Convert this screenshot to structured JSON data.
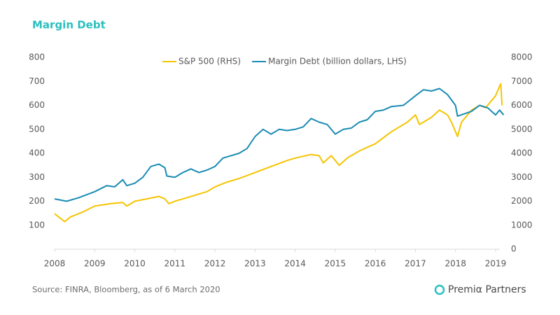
{
  "chart_data": {
    "type": "line",
    "title": "Margin Debt",
    "source": "Source: FINRA, Bloomberg, as of 6 March 2020",
    "brand": "Premiα Partners",
    "xlim": [
      2008,
      2019.25
    ],
    "xticks": [
      2008,
      2009,
      2010,
      2011,
      2012,
      2013,
      2014,
      2015,
      2016,
      2017,
      2018,
      2019
    ],
    "ylim": [
      0,
      800
    ],
    "yticks": [
      100,
      200,
      300,
      400,
      500,
      600,
      700,
      800
    ],
    "y2lim": [
      0,
      8000
    ],
    "y2ticks": [
      0,
      1000,
      2000,
      3000,
      4000,
      5000,
      6000,
      7000,
      8000
    ],
    "legend": "top",
    "series": [
      {
        "name": "S&P 500 (RHS)",
        "color": "#f5c400",
        "axis": "y2",
        "x": [
          2008.0,
          2008.1,
          2008.25,
          2008.4,
          2008.7,
          2009.0,
          2009.4,
          2009.7,
          2009.8,
          2010.0,
          2010.3,
          2010.6,
          2010.75,
          2010.85,
          2011.0,
          2011.3,
          2011.6,
          2011.8,
          2012.0,
          2012.3,
          2012.6,
          2013.0,
          2013.4,
          2013.8,
          2014.0,
          2014.4,
          2014.6,
          2014.7,
          2014.9,
          2015.1,
          2015.3,
          2015.6,
          2016.0,
          2016.4,
          2016.8,
          2017.0,
          2017.1,
          2017.4,
          2017.6,
          2017.8,
          2017.9,
          2018.05,
          2018.15,
          2018.4,
          2018.6,
          2018.75,
          2019.0,
          2019.1,
          2019.13,
          2019.16
        ],
        "values": [
          1480,
          1350,
          1150,
          1350,
          1550,
          1800,
          1900,
          1950,
          1800,
          2000,
          2100,
          2200,
          2100,
          1900,
          2000,
          2150,
          2300,
          2400,
          2600,
          2800,
          2950,
          3200,
          3450,
          3700,
          3800,
          3950,
          3900,
          3600,
          3900,
          3500,
          3800,
          4100,
          4400,
          4900,
          5300,
          5600,
          5200,
          5500,
          5800,
          5600,
          5300,
          4700,
          5300,
          5800,
          6000,
          5900,
          6400,
          6800,
          6900,
          6000
        ]
      },
      {
        "name": "Margin Debt (billion dollars, LHS)",
        "color": "#1a8cb3",
        "axis": "y",
        "x": [
          2008.0,
          2008.3,
          2008.6,
          2009.0,
          2009.3,
          2009.5,
          2009.7,
          2009.8,
          2010.0,
          2010.2,
          2010.4,
          2010.6,
          2010.75,
          2010.8,
          2011.0,
          2011.2,
          2011.4,
          2011.6,
          2011.8,
          2012.0,
          2012.2,
          2012.4,
          2012.6,
          2012.8,
          2013.0,
          2013.2,
          2013.4,
          2013.6,
          2013.8,
          2014.0,
          2014.2,
          2014.4,
          2014.6,
          2014.8,
          2015.0,
          2015.2,
          2015.4,
          2015.6,
          2015.8,
          2016.0,
          2016.2,
          2016.4,
          2016.7,
          2017.0,
          2017.2,
          2017.4,
          2017.6,
          2017.8,
          2018.0,
          2018.05,
          2018.4,
          2018.6,
          2018.8,
          2019.0,
          2019.1,
          2019.2
        ],
        "values": [
          210,
          200,
          215,
          240,
          265,
          260,
          290,
          265,
          275,
          300,
          345,
          355,
          340,
          305,
          300,
          320,
          335,
          320,
          330,
          345,
          380,
          390,
          400,
          420,
          470,
          500,
          480,
          500,
          495,
          500,
          510,
          545,
          530,
          520,
          480,
          500,
          505,
          530,
          540,
          575,
          580,
          595,
          600,
          640,
          665,
          660,
          670,
          645,
          600,
          555,
          575,
          600,
          590,
          560,
          580,
          560
        ]
      }
    ]
  }
}
